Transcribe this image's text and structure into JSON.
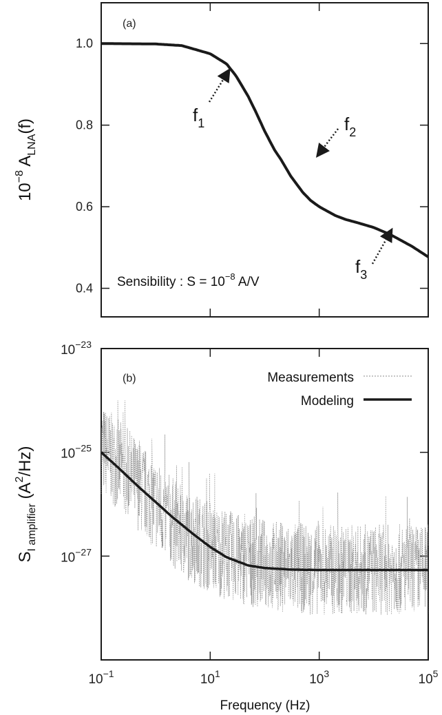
{
  "chart_data": [
    {
      "type": "line",
      "panel_label": "(a)",
      "xscale": "log",
      "xlim": [
        0.1,
        100000
      ],
      "ylim": [
        0.33,
        1.1
      ],
      "yticks": [
        "0.4",
        "0.6",
        "0.8",
        "1.0"
      ],
      "ylabel": {
        "base": "10",
        "exp": "−8",
        "mid": " A",
        "sub": "LNA",
        "tail": "(f)"
      },
      "annotation": {
        "prefix": "Sensibility : S = 10",
        "exp": "−8",
        "suffix": " A/V"
      },
      "markers": [
        {
          "label": "f",
          "sub": "1",
          "x": 15,
          "y": 0.85
        },
        {
          "label": "f",
          "sub": "2",
          "x": 1000,
          "y": 0.74
        },
        {
          "label": "f",
          "sub": "3",
          "x": 7000,
          "y": 0.51
        }
      ],
      "series": [
        {
          "name": "",
          "color": "#1a1a1a",
          "x": [
            0.1,
            1,
            3,
            10,
            20,
            30,
            50,
            70,
            100,
            150,
            200,
            300,
            500,
            700,
            1000,
            2000,
            3000,
            5000,
            10000,
            20000,
            50000,
            100000
          ],
          "y": [
            1.0,
            0.999,
            0.995,
            0.975,
            0.95,
            0.92,
            0.87,
            0.83,
            0.785,
            0.74,
            0.715,
            0.675,
            0.635,
            0.615,
            0.6,
            0.578,
            0.569,
            0.561,
            0.549,
            0.532,
            0.503,
            0.477
          ]
        }
      ]
    },
    {
      "type": "line",
      "panel_label": "(b)",
      "xscale": "log",
      "yscale": "log",
      "xlim": [
        0.1,
        100000
      ],
      "ylim": [
        1e-29,
        1e-23
      ],
      "xlabel": "Frequency (Hz)",
      "xticks": [
        {
          "base": "10",
          "exp": "−1"
        },
        {
          "base": "10",
          "exp": "1"
        },
        {
          "base": "10",
          "exp": "3"
        },
        {
          "base": "10",
          "exp": "5"
        }
      ],
      "yticks": [
        {
          "base": "10",
          "exp": "−27"
        },
        {
          "base": "10",
          "exp": "−25"
        },
        {
          "base": "10",
          "exp": "−23"
        }
      ],
      "ylabel": {
        "base": "S",
        "sub": "I amplifier",
        "mid": " (A",
        "exp": "2",
        "tail": "/Hz)"
      },
      "series": [
        {
          "name": "Measurements",
          "color": "#8a8a8a",
          "style": "dotted",
          "noise_note": "dense noisy measurement trace",
          "x": [
            0.1,
            0.3,
            1,
            3,
            10,
            30,
            100,
            300,
            1000,
            3000,
            10000,
            30000,
            100000
          ],
          "y": [
            1.2e-25,
            4e-26,
            1e-26,
            3e-27,
            1.5e-27,
            9e-28,
            7e-28,
            6e-28,
            5.5e-28,
            5.5e-28,
            5.5e-28,
            5.5e-28,
            5.5e-28
          ]
        },
        {
          "name": "Modeling",
          "color": "#1a1a1a",
          "style": "solid",
          "x": [
            0.1,
            0.2,
            0.5,
            1,
            2,
            5,
            10,
            20,
            50,
            100,
            300,
            1000,
            10000,
            100000
          ],
          "y": [
            1e-25,
            5.2e-26,
            2.1e-26,
            1.1e-26,
            5.7e-27,
            2.6e-27,
            1.5e-27,
            9.5e-28,
            6.6e-28,
            5.9e-28,
            5.5e-28,
            5.4e-28,
            5.4e-28,
            5.4e-28
          ]
        }
      ]
    }
  ]
}
